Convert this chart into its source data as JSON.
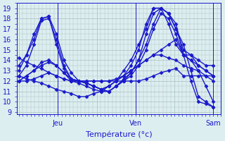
{
  "bg_color": "#ddeef0",
  "grid_color": "#aabfbf",
  "line_color": "#1a1acc",
  "marker": "D",
  "markersize": 2.5,
  "linewidth": 1.0,
  "xlabel": "Température (°c)",
  "xlabel_fontsize": 8,
  "xtick_labels": [
    "",
    "Jeu",
    "",
    "Ven",
    "",
    "Sam"
  ],
  "xtick_positions": [
    0,
    20,
    40,
    60,
    80,
    100
  ],
  "ytick_min": 9,
  "ytick_max": 19,
  "ylim": [
    8.8,
    19.5
  ],
  "xlim": [
    -1,
    104
  ],
  "series": [
    [
      13.0,
      14.5,
      16.0,
      18.0,
      18.2,
      15.5,
      13.2,
      12.2,
      12.0,
      11.8,
      11.5,
      11.2,
      11.5,
      12.0,
      13.0,
      14.0,
      15.5,
      17.0,
      19.0,
      19.0,
      18.5,
      17.5,
      14.5,
      14.0,
      13.5,
      13.0,
      12.5
    ],
    [
      14.2,
      13.8,
      13.5,
      13.2,
      12.8,
      12.5,
      12.2,
      12.0,
      12.0,
      12.0,
      12.0,
      12.0,
      12.0,
      12.2,
      12.5,
      13.0,
      13.5,
      14.0,
      14.5,
      15.0,
      15.5,
      16.0,
      14.5,
      14.5,
      14.0,
      13.5,
      13.5
    ],
    [
      13.5,
      14.5,
      16.5,
      18.0,
      18.2,
      16.5,
      14.0,
      12.8,
      12.0,
      11.8,
      11.5,
      11.2,
      11.0,
      11.5,
      12.2,
      12.8,
      14.0,
      15.5,
      17.5,
      19.0,
      18.5,
      17.0,
      15.0,
      14.5,
      13.5,
      13.0,
      12.5
    ],
    [
      12.5,
      13.5,
      15.5,
      17.8,
      18.0,
      16.0,
      13.5,
      12.2,
      12.0,
      11.8,
      11.5,
      11.2,
      11.0,
      11.5,
      12.0,
      12.5,
      13.5,
      15.0,
      17.0,
      18.5,
      18.0,
      16.5,
      14.5,
      14.0,
      13.0,
      12.5,
      12.0
    ],
    [
      12.0,
      12.0,
      12.2,
      12.5,
      12.8,
      12.5,
      12.2,
      12.0,
      12.0,
      12.0,
      12.0,
      12.0,
      12.0,
      12.0,
      12.0,
      12.0,
      12.0,
      12.2,
      12.5,
      12.8,
      13.0,
      13.2,
      12.5,
      12.5,
      12.5,
      12.5,
      12.5
    ],
    [
      12.5,
      12.2,
      12.0,
      11.8,
      11.5,
      11.2,
      11.0,
      10.8,
      10.5,
      10.5,
      10.8,
      11.0,
      11.5,
      12.0,
      12.5,
      13.0,
      13.5,
      14.0,
      14.5,
      14.5,
      14.2,
      14.0,
      13.5,
      13.2,
      13.0,
      11.5,
      10.0
    ],
    [
      12.0,
      12.5,
      13.0,
      13.5,
      13.8,
      13.5,
      12.8,
      12.2,
      12.0,
      11.8,
      11.5,
      11.2,
      11.5,
      12.0,
      12.5,
      13.5,
      15.0,
      17.5,
      19.0,
      19.0,
      18.5,
      17.0,
      15.5,
      13.0,
      10.5,
      10.0,
      9.5
    ],
    [
      12.0,
      12.5,
      13.0,
      13.8,
      14.0,
      13.5,
      12.8,
      12.0,
      11.8,
      11.5,
      11.2,
      11.0,
      11.0,
      11.5,
      12.0,
      12.8,
      14.0,
      16.5,
      18.5,
      19.0,
      17.5,
      15.5,
      14.5,
      12.0,
      10.0,
      9.8,
      9.5
    ]
  ],
  "tick_fontsize": 7,
  "vlines": [
    20,
    60,
    100
  ]
}
